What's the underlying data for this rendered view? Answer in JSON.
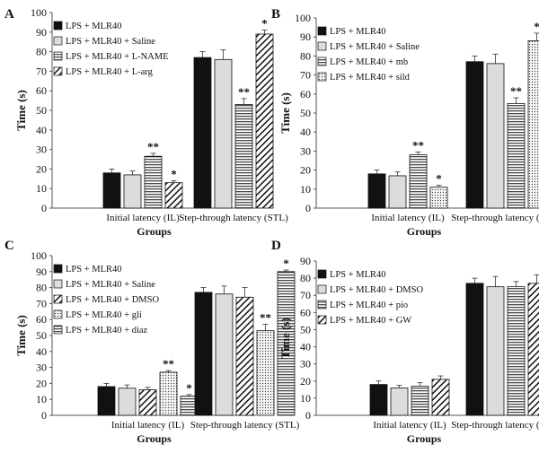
{
  "chart_data": [
    {
      "panel": "A",
      "type": "bar",
      "ylabel": "Time (s)",
      "xlabel": "Groups",
      "ylim": [
        0,
        100
      ],
      "ytick_step": 10,
      "categories": [
        "Initial latency (IL)",
        "Step-through latency (STL)"
      ],
      "series": [
        {
          "name": "LPS + MLR40",
          "pattern": "solid",
          "values": [
            18,
            77
          ],
          "errors": [
            2,
            3
          ],
          "sig": [
            "",
            ""
          ]
        },
        {
          "name": "LPS + MLR40 + Saline",
          "pattern": "light",
          "values": [
            17,
            76
          ],
          "errors": [
            2,
            5
          ],
          "sig": [
            "",
            ""
          ]
        },
        {
          "name": "LPS + MLR40 + L-NAME",
          "pattern": "hlines",
          "values": [
            26.5,
            53
          ],
          "errors": [
            1.5,
            3
          ],
          "sig": [
            "**",
            "**"
          ]
        },
        {
          "name": "LPS + MLR40 + L-arg",
          "pattern": "diag",
          "values": [
            13,
            89
          ],
          "errors": [
            1,
            2
          ],
          "sig": [
            "*",
            "*"
          ]
        }
      ]
    },
    {
      "panel": "B",
      "type": "bar",
      "ylabel": "Time (s)",
      "xlabel": "Groups",
      "ylim": [
        0,
        100
      ],
      "ytick_step": 10,
      "categories": [
        "Initial latency (IL)",
        "Step-through latency (STL)"
      ],
      "series": [
        {
          "name": "LPS + MLR40",
          "pattern": "solid",
          "values": [
            18,
            77
          ],
          "errors": [
            2,
            3
          ],
          "sig": [
            "",
            ""
          ]
        },
        {
          "name": "LPS + MLR40 + Saline",
          "pattern": "light",
          "values": [
            17,
            76
          ],
          "errors": [
            2,
            5
          ],
          "sig": [
            "",
            ""
          ]
        },
        {
          "name": "LPS + MLR40 + mb",
          "pattern": "hlines",
          "values": [
            28,
            55
          ],
          "errors": [
            1.5,
            3
          ],
          "sig": [
            "**",
            "**"
          ]
        },
        {
          "name": "LPS + MLR40 + sild",
          "pattern": "dots",
          "values": [
            11,
            88
          ],
          "errors": [
            1,
            4
          ],
          "sig": [
            "*",
            "*"
          ]
        }
      ]
    },
    {
      "panel": "C",
      "type": "bar",
      "ylabel": "Time (s)",
      "xlabel": "Groups",
      "ylim": [
        0,
        100
      ],
      "ytick_step": 10,
      "categories": [
        "Initial latency (IL)",
        "Step-through latency (STL)"
      ],
      "series": [
        {
          "name": "LPS + MLR40",
          "pattern": "solid",
          "values": [
            18,
            77
          ],
          "errors": [
            2,
            3
          ],
          "sig": [
            "",
            ""
          ]
        },
        {
          "name": "LPS + MLR40 + Saline",
          "pattern": "light",
          "values": [
            17,
            76
          ],
          "errors": [
            2,
            5
          ],
          "sig": [
            "",
            ""
          ]
        },
        {
          "name": "LPS + MLR40 + DMSO",
          "pattern": "diag",
          "values": [
            16,
            74
          ],
          "errors": [
            1.5,
            6
          ],
          "sig": [
            "",
            ""
          ]
        },
        {
          "name": "LPS + MLR40 + gli",
          "pattern": "dots",
          "values": [
            27,
            53
          ],
          "errors": [
            1,
            4
          ],
          "sig": [
            "**",
            "**"
          ]
        },
        {
          "name": "LPS + MLR40 + diaz",
          "pattern": "hlines",
          "values": [
            12,
            90
          ],
          "errors": [
            1,
            1
          ],
          "sig": [
            "*",
            "*"
          ]
        }
      ]
    },
    {
      "panel": "D",
      "type": "bar",
      "ylabel": "Time (s)",
      "xlabel": "Groups",
      "ylim": [
        0,
        90
      ],
      "ytick_step": 10,
      "categories": [
        "Initial latency (IL)",
        "Step-through latency (STL)"
      ],
      "series": [
        {
          "name": "LPS + MLR40",
          "pattern": "solid",
          "values": [
            18,
            77
          ],
          "errors": [
            2,
            3
          ],
          "sig": [
            "",
            ""
          ]
        },
        {
          "name": "LPS + MLR40 + DMSO",
          "pattern": "light",
          "values": [
            16,
            75
          ],
          "errors": [
            1.5,
            6
          ],
          "sig": [
            "",
            ""
          ]
        },
        {
          "name": "LPS + MLR40 + pio",
          "pattern": "hlines",
          "values": [
            17,
            75
          ],
          "errors": [
            2,
            3
          ],
          "sig": [
            "",
            ""
          ]
        },
        {
          "name": "LPS + MLR40 + GW",
          "pattern": "diag",
          "values": [
            21,
            77
          ],
          "errors": [
            2,
            5
          ],
          "sig": [
            "",
            ""
          ]
        }
      ]
    }
  ]
}
